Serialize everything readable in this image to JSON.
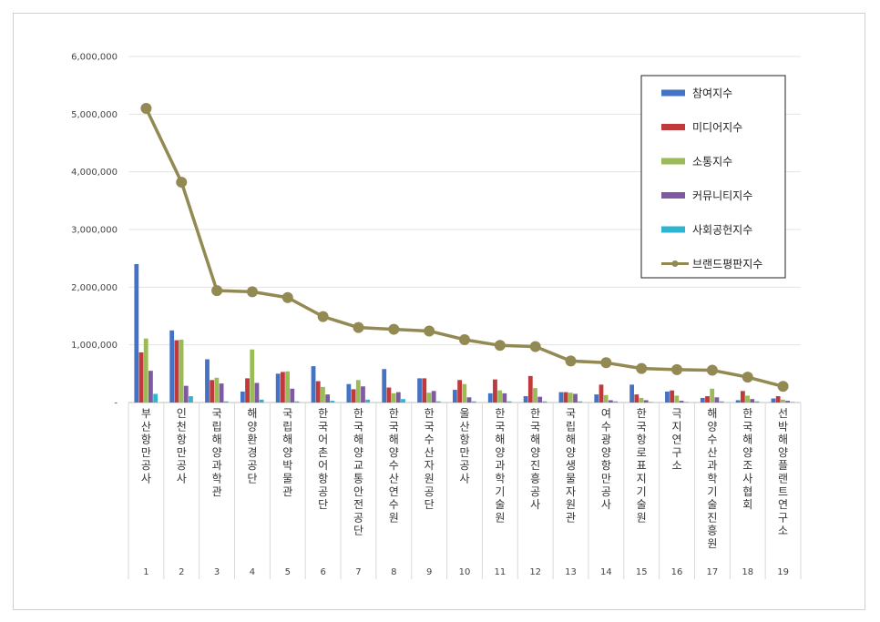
{
  "chart_data": {
    "type": "bar",
    "yticks": [
      "6,000,000",
      "5,000,000",
      "4,000,000",
      "3,000,000",
      "2,000,000",
      "1,000,000",
      "-"
    ],
    "ylim": [
      0,
      6000000
    ],
    "grid": true,
    "legend_position": "top-right",
    "ranks": [
      "1",
      "2",
      "3",
      "4",
      "5",
      "6",
      "7",
      "8",
      "9",
      "10",
      "11",
      "12",
      "13",
      "14",
      "15",
      "16",
      "17",
      "18",
      "19"
    ],
    "categories": [
      "부산항만공사",
      "인천항만공사",
      "국립해양과학관",
      "해양환경공단",
      "국립해양박물관",
      "한국어촌어항공단",
      "한국해양교통안전공단",
      "한국해양수산연수원",
      "한국수산자원공단",
      "울산항만공사",
      "한국해양과학기술원",
      "한국해양진흥공사",
      "국립해양생물자원관",
      "여수광양항만공사",
      "한국항로표지기술원",
      "극지연구소",
      "해양수산과학기술진흥원",
      "한국해양조사협회",
      "선박해양플랜트연구소"
    ],
    "series": [
      {
        "name": "참여지수",
        "color": "#4472c4",
        "values": [
          2400000,
          1250000,
          750000,
          190000,
          500000,
          630000,
          320000,
          580000,
          420000,
          220000,
          160000,
          110000,
          180000,
          140000,
          310000,
          190000,
          80000,
          40000,
          70000
        ]
      },
      {
        "name": "미디어지수",
        "color": "#c0393b",
        "values": [
          870000,
          1080000,
          390000,
          420000,
          530000,
          370000,
          230000,
          260000,
          420000,
          390000,
          400000,
          460000,
          180000,
          310000,
          140000,
          210000,
          110000,
          200000,
          110000
        ]
      },
      {
        "name": "소통지수",
        "color": "#9bbb59",
        "values": [
          1110000,
          1090000,
          430000,
          920000,
          540000,
          270000,
          390000,
          160000,
          170000,
          320000,
          210000,
          250000,
          170000,
          130000,
          80000,
          120000,
          240000,
          120000,
          50000
        ]
      },
      {
        "name": "커뮤니티지수",
        "color": "#7f5aa3",
        "values": [
          550000,
          290000,
          330000,
          340000,
          240000,
          140000,
          280000,
          180000,
          200000,
          90000,
          160000,
          100000,
          150000,
          40000,
          40000,
          30000,
          90000,
          60000,
          30000
        ]
      },
      {
        "name": "사회공헌지수",
        "color": "#2fb5d1",
        "values": [
          150000,
          110000,
          20000,
          50000,
          20000,
          30000,
          50000,
          60000,
          20000,
          20000,
          20000,
          20000,
          20000,
          20000,
          10000,
          10000,
          20000,
          20000,
          10000
        ]
      },
      {
        "name": "브랜드평판지수",
        "color": "#938953",
        "type": "line",
        "values": [
          5100000,
          3820000,
          1940000,
          1920000,
          1820000,
          1490000,
          1300000,
          1270000,
          1240000,
          1090000,
          990000,
          970000,
          720000,
          690000,
          590000,
          570000,
          560000,
          440000,
          280000
        ]
      }
    ]
  }
}
